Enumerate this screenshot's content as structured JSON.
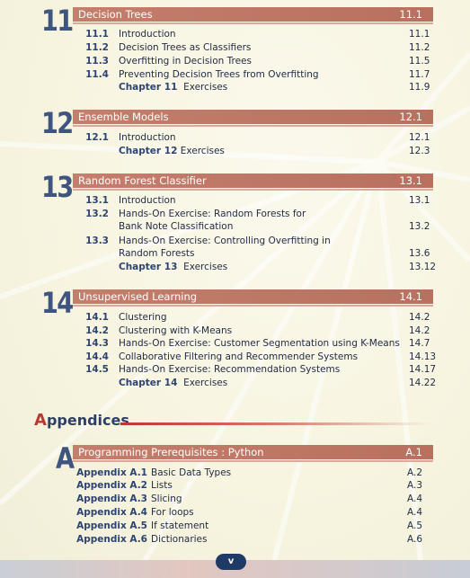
{
  "chapters": [
    {
      "number": "11",
      "title": "Decision Trees",
      "page": "11.1",
      "entries": [
        {
          "num": "11.1",
          "label": "Introduction",
          "page": "11.1"
        },
        {
          "num": "11.2",
          "label": "Decision Trees as Classifiers",
          "page": "11.2"
        },
        {
          "num": "11.3",
          "label": "Overfitting in Decision Trees",
          "page": "11.5"
        },
        {
          "num": "11.4",
          "label": "Preventing Decision Trees from Overfitting",
          "page": "11.7"
        }
      ],
      "exercises": {
        "chapter": "Chapter 11",
        "label": "Exercises",
        "page": "11.9"
      }
    },
    {
      "number": "12",
      "title": "Ensemble Models",
      "page": "12.1",
      "entries": [
        {
          "num": "12.1",
          "label": "Introduction",
          "page": "12.1"
        }
      ],
      "exercises": {
        "chapter": "Chapter 12",
        "label": "Exercises",
        "page": "12.3"
      }
    },
    {
      "number": "13",
      "title": "Random Forest Classifier",
      "page": "13.1",
      "entries": [
        {
          "num": "13.1",
          "label": "Introduction",
          "page": "13.1"
        },
        {
          "num": "13.2",
          "label": "Hands-On Exercise: Random Forests for",
          "label2": "Bank Note Classification",
          "page": "13.2"
        },
        {
          "num": "13.3",
          "label": "Hands-On Exercise: Controlling Overfitting in",
          "label2": "Random Forests",
          "page": "13.6"
        }
      ],
      "exercises": {
        "chapter": "Chapter 13",
        "label": "Exercises",
        "page": "13.12"
      }
    },
    {
      "number": "14",
      "title": "Unsupervised Learning",
      "page": "14.1",
      "entries": [
        {
          "num": "14.1",
          "label": "Clustering",
          "page": "14.2"
        },
        {
          "num": "14.2",
          "label": "Clustering with K-Means",
          "page": "14.2"
        },
        {
          "num": "14.3",
          "label": "Hands-On Exercise: Customer Segmentation using K-Means",
          "page": "14.7"
        },
        {
          "num": "14.4",
          "label": "Collaborative Filtering and Recommender Systems",
          "page": "14.13"
        },
        {
          "num": "14.5",
          "label": "Hands-On Exercise: Recommendation Systems",
          "page": "14.17"
        }
      ],
      "exercises": {
        "chapter": "Chapter 14",
        "label": "Exercises",
        "page": "14.22"
      }
    }
  ],
  "appendices": {
    "heading_first": "A",
    "heading_rest": "ppendices",
    "letter": "A",
    "title": "Programming Prerequisites : Python",
    "page": "A.1",
    "entries": [
      {
        "num": "Appendix A.1",
        "label": "Basic Data Types",
        "page": "A.2"
      },
      {
        "num": "Appendix A.2",
        "label": "Lists",
        "page": "A.3"
      },
      {
        "num": "Appendix A.3",
        "label": "Slicing",
        "page": "A.4"
      },
      {
        "num": "Appendix A.4",
        "label": "For loops",
        "page": "A.4"
      },
      {
        "num": "Appendix A.5",
        "label": "If statement",
        "page": "A.5"
      },
      {
        "num": "Appendix A.6",
        "label": "Dictionaries",
        "page": "A.6"
      }
    ]
  },
  "footer": {
    "page_label": "v"
  },
  "colors": {
    "bar": "#c47e6c",
    "number": "#3f5580",
    "accent": "#b8392f",
    "pill": "#1f3a66"
  }
}
